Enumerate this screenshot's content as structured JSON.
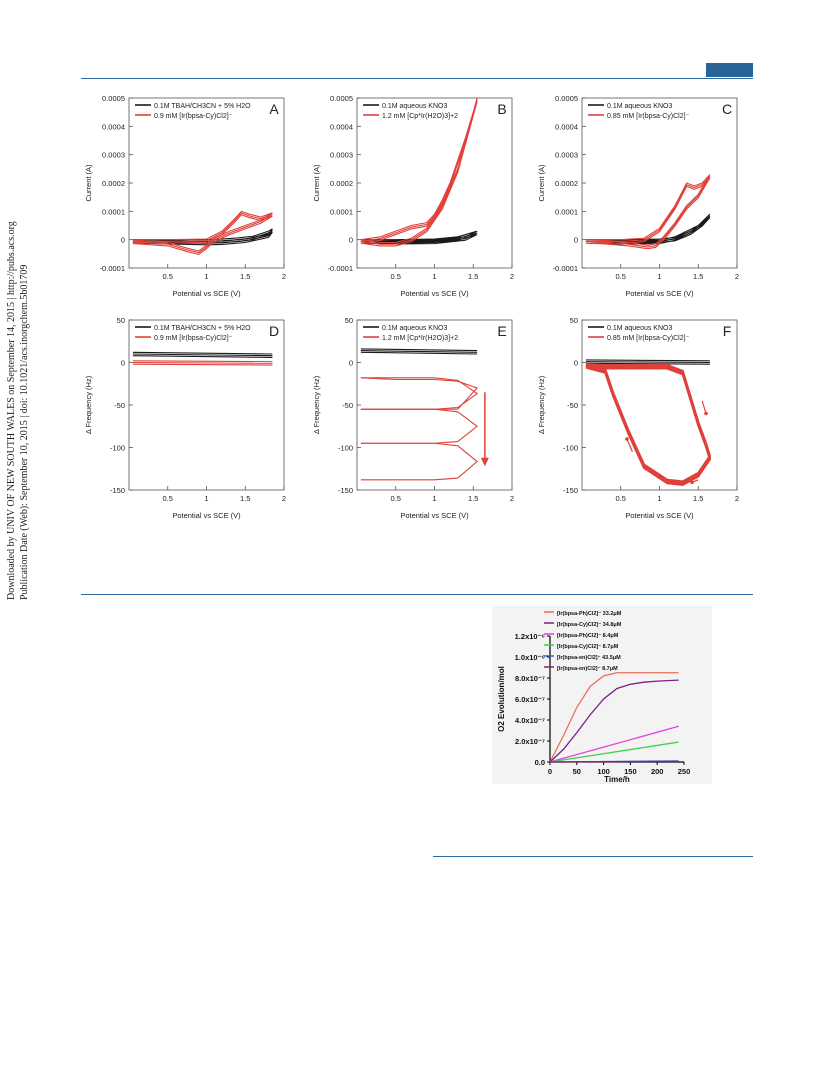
{
  "sidebar": {
    "line1": "Downloaded by UNIV OF NEW SOUTH WALES on September 14, 2015 | http://pubs.acs.org",
    "line2": "Publication Date (Web): September 10, 2015 | doi: 10.1021/acs.inorgchem.5b01709"
  },
  "colors": {
    "rule": "#2e6da4",
    "tab": "#2a6496",
    "red": "#e0403a",
    "black": "#1a1a1a"
  },
  "chart_data": [
    {
      "id": "A",
      "type": "line",
      "panel_letter": "A",
      "xlabel": "Potential vs SCE (V)",
      "ylabel": "Current (A)",
      "xlim": [
        0,
        2
      ],
      "ylim": [
        -0.0001,
        0.0005
      ],
      "xticks": [
        "0.5",
        "1",
        "1.5",
        "2"
      ],
      "yticks": [
        "-0.0001",
        "0",
        "0.0001",
        "0.0002",
        "0.0003",
        "0.0004",
        "0.0005"
      ],
      "legend": [
        "0.1M TBAH/CH3CN + 5% H2O",
        "0.9 mM [Ir(bpsa-Cy)Cl2]⁻"
      ],
      "series": [
        {
          "name": "0.1M TBAH/CH3CN + 5% H2O",
          "color": "#1a1a1a",
          "x": [
            0.05,
            0.5,
            1.0,
            1.2,
            1.4,
            1.6,
            1.8,
            1.85,
            1.8,
            1.5,
            1.2,
            1.0,
            0.5,
            0.05
          ],
          "y": [
            0,
            0,
            0,
            2e-06,
            6e-06,
            1.2e-05,
            3e-05,
            3.8e-05,
            2e-05,
            2e-06,
            -5e-06,
            -6e-06,
            -3e-06,
            0
          ]
        },
        {
          "name": "0.9 mM [Ir(bpsa-Cy)Cl2]⁻",
          "color": "#e0403a",
          "x": [
            0.05,
            0.5,
            1.0,
            1.2,
            1.35,
            1.45,
            1.55,
            1.7,
            1.85,
            1.7,
            1.5,
            1.3,
            1.1,
            1.0,
            0.9,
            0.75,
            0.5,
            0.05
          ],
          "y": [
            0,
            0,
            2e-06,
            3e-05,
            7e-05,
            0.0001,
            9e-05,
            8e-05,
            9.5e-05,
            7e-05,
            5e-05,
            3e-05,
            5e-06,
            -2e-05,
            -4e-05,
            -3e-05,
            -1e-05,
            -2e-06
          ]
        }
      ]
    },
    {
      "id": "B",
      "type": "line",
      "panel_letter": "B",
      "xlabel": "Potential vs SCE (V)",
      "ylabel": "Current (A)",
      "xlim": [
        0,
        2
      ],
      "ylim": [
        -0.0001,
        0.0005
      ],
      "xticks": [
        "0.5",
        "1",
        "1.5",
        "2"
      ],
      "yticks": [
        "-0.0001",
        "0",
        "0.0001",
        "0.0002",
        "0.0003",
        "0.0004",
        "0.0005"
      ],
      "legend": [
        "0.1M aqueous KNO3",
        "1.2 mM [Cp*Ir(H2O)3]+2"
      ],
      "series": [
        {
          "name": "0.1M aqueous KNO3",
          "color": "#1a1a1a",
          "x": [
            0.05,
            0.5,
            1.0,
            1.3,
            1.55,
            1.4,
            1.0,
            0.5,
            0.05
          ],
          "y": [
            0,
            0,
            2e-06,
            1e-05,
            3e-05,
            1e-05,
            -2e-06,
            -3e-06,
            0
          ]
        },
        {
          "name": "1.2 mM [Cp*Ir(H2O)3]+2",
          "color": "#e0403a",
          "x": [
            0.05,
            0.3,
            0.4,
            0.5,
            0.7,
            0.9,
            1.0,
            1.1,
            1.2,
            1.3,
            1.4,
            1.5,
            1.55,
            1.45,
            1.3,
            1.1,
            0.9,
            0.7,
            0.5,
            0.3,
            0.05
          ],
          "y": [
            0,
            1e-05,
            2e-05,
            3e-05,
            5e-05,
            6e-05,
            9e-05,
            0.00014,
            0.0002,
            0.00028,
            0.00036,
            0.00045,
            0.0005,
            0.0004,
            0.00025,
            0.00012,
            4e-05,
            5e-06,
            -1e-05,
            -1e-05,
            0
          ]
        }
      ]
    },
    {
      "id": "C",
      "type": "line",
      "panel_letter": "C",
      "xlabel": "Potential vs SCE (V)",
      "ylabel": "Current (A)",
      "xlim": [
        0,
        2
      ],
      "ylim": [
        -0.0001,
        0.0005
      ],
      "xticks": [
        "0.5",
        "1",
        "1.5",
        "2"
      ],
      "yticks": [
        "-0.0001",
        "0",
        "0.0001",
        "0.0002",
        "0.0003",
        "0.0004",
        "0.0005"
      ],
      "legend": [
        "0.1M aqueous KNO3",
        "0.85 mM [Ir(bpsa-Cy)Cl2]⁻"
      ],
      "series": [
        {
          "name": "0.1M aqueous KNO3",
          "color": "#1a1a1a",
          "x": [
            0.05,
            0.5,
            1.0,
            1.2,
            1.4,
            1.55,
            1.65,
            1.5,
            1.2,
            1.0,
            0.5,
            0.05
          ],
          "y": [
            0,
            0,
            2e-06,
            8e-06,
            3e-05,
            6e-05,
            9e-05,
            5e-05,
            1e-05,
            -2e-06,
            -3e-06,
            0
          ]
        },
        {
          "name": "0.85 mM [Ir(bpsa-Cy)Cl2]⁻",
          "color": "#e0403a",
          "x": [
            0.05,
            0.5,
            0.8,
            1.0,
            1.2,
            1.35,
            1.45,
            1.55,
            1.65,
            1.5,
            1.35,
            1.2,
            1.05,
            0.95,
            0.85,
            0.6,
            0.3,
            0.05
          ],
          "y": [
            0,
            0,
            5e-06,
            4e-05,
            0.00012,
            0.0002,
            0.00019,
            0.0002,
            0.00023,
            0.00016,
            0.00012,
            6e-05,
            1e-05,
            -1.5e-05,
            -2e-05,
            -1e-05,
            -3e-06,
            0
          ]
        }
      ]
    },
    {
      "id": "D",
      "type": "line",
      "panel_letter": "D",
      "xlabel": "Potential vs SCE (V)",
      "ylabel": "Δ Frequency (Hz)",
      "xlim": [
        0,
        2
      ],
      "ylim": [
        -150,
        50
      ],
      "xticks": [
        "0.5",
        "1",
        "1.5",
        "2"
      ],
      "yticks": [
        "-150",
        "-100",
        "-50",
        "0",
        "50"
      ],
      "legend": [
        "0.1M TBAH/CH3CN + 5% H2O",
        "0.9 mM [Ir(bpsa-Cy)Cl2]⁻"
      ],
      "series": [
        {
          "name": "0.1M TBAH/CH3CN + 5% H2O",
          "color": "#1a1a1a",
          "x": [
            0.05,
            1.85
          ],
          "y": [
            12,
            10
          ]
        },
        {
          "name": "0.9 mM [Ir(bpsa-Cy)Cl2]⁻",
          "color": "#e0403a",
          "x": [
            0.05,
            1.85
          ],
          "y": [
            2,
            1
          ]
        }
      ]
    },
    {
      "id": "E",
      "type": "line",
      "panel_letter": "E",
      "xlabel": "Potential vs SCE (V)",
      "ylabel": "Δ Frequency (Hz)",
      "xlim": [
        0,
        2
      ],
      "ylim": [
        -150,
        50
      ],
      "xticks": [
        "0.5",
        "1",
        "1.5",
        "2"
      ],
      "yticks": [
        "-150",
        "-100",
        "-50",
        "0",
        "50"
      ],
      "legend": [
        "0.1M aqueous KNO3",
        "1.2 mM [Cp*Ir(H2O)3]+2"
      ],
      "series": [
        {
          "name": "0.1M aqueous KNO3",
          "color": "#1a1a1a",
          "x": [
            0.05,
            1.55
          ],
          "y": [
            16,
            14
          ]
        },
        {
          "name": "1.2 mM [Cp*Ir(H2O)3]+2",
          "color": "#e0403a",
          "x": [
            0.05,
            0.5,
            1.0,
            1.3,
            1.55,
            1.3,
            1.0,
            0.5,
            0.05
          ],
          "y": [
            -18,
            -20,
            -20,
            -22,
            -30,
            -55,
            -55,
            -55,
            -55
          ]
        }
      ]
    },
    {
      "id": "F",
      "type": "line",
      "panel_letter": "F",
      "xlabel": "Potential vs SCE (V)",
      "ylabel": "Δ Frequency (Hz)",
      "xlim": [
        0,
        2
      ],
      "ylim": [
        -150,
        50
      ],
      "xticks": [
        "0.5",
        "1",
        "1.5",
        "2"
      ],
      "yticks": [
        "-150",
        "-100",
        "-50",
        "0",
        "50"
      ],
      "legend": [
        "0.1M aqueous KNO3",
        "0.85 mM [Ir(bpsa-Cy)Cl2]⁻"
      ],
      "series": [
        {
          "name": "0.1M aqueous KNO3",
          "color": "#1a1a1a",
          "x": [
            0.05,
            1.65
          ],
          "y": [
            3,
            2
          ]
        },
        {
          "name": "0.85 mM [Ir(bpsa-Cy)Cl2]⁻",
          "color": "#e0403a",
          "x": [
            0.05,
            0.3,
            1.1,
            1.3,
            1.4,
            1.5,
            1.6,
            1.65,
            1.5,
            1.3,
            1.1,
            0.8,
            0.6,
            0.4,
            0.3,
            0.05
          ],
          "y": [
            -2,
            -3,
            -3,
            -10,
            -40,
            -70,
            -95,
            -110,
            -130,
            -140,
            -138,
            -120,
            -80,
            -35,
            -8,
            -2
          ]
        }
      ]
    },
    {
      "id": "inset",
      "type": "line",
      "xlabel": "Time/h",
      "ylabel": "O2 Evolution/mol",
      "xlim": [
        0,
        250
      ],
      "ylim": [
        0,
        1.2e-06
      ],
      "xticks": [
        "0",
        "50",
        "100",
        "150",
        "200",
        "250"
      ],
      "yticks": [
        "0.0",
        "2.0x10⁻⁷",
        "4.0x10⁻⁷",
        "6.0x10⁻⁷",
        "8.0x10⁻⁷",
        "1.0x10⁻⁶",
        "1.2x10⁻⁶"
      ],
      "series": [
        {
          "name": "[Ir(bpsa-Ph)Cl2]⁻ 33.2μM",
          "color": "#e8705a",
          "x": [
            0,
            25,
            50,
            75,
            100,
            125,
            150,
            175,
            200,
            240
          ],
          "y": [
            0,
            2.5e-07,
            5.2e-07,
            7.2e-07,
            8.2e-07,
            8.5e-07,
            8.5e-07,
            8.5e-07,
            8.5e-07,
            8.5e-07
          ]
        },
        {
          "name": "[Ir(bpsa-Cy)Cl2]⁻ 34.8μM",
          "color": "#7a1f8a",
          "x": [
            0,
            25,
            50,
            75,
            100,
            125,
            150,
            175,
            200,
            240
          ],
          "y": [
            0,
            1.2e-07,
            2.8e-07,
            4.5e-07,
            6e-07,
            7e-07,
            7.4e-07,
            7.6e-07,
            7.7e-07,
            7.8e-07
          ]
        },
        {
          "name": "[Ir(bpsa-Ph)Cl2]⁻ 8.4μM",
          "color": "#e040e0",
          "x": [
            0,
            240
          ],
          "y": [
            0,
            3.4e-07
          ]
        },
        {
          "name": "[Ir(bpsa-Cy)Cl2]⁻ 8.7μM",
          "color": "#3ed34b",
          "x": [
            0,
            240
          ],
          "y": [
            0,
            1.9e-07
          ]
        },
        {
          "name": "[Ir(bpsa-en)Cl2]⁻ 43.5μM",
          "color": "#3a5fc8",
          "x": [
            0,
            240
          ],
          "y": [
            0,
            1e-08
          ]
        },
        {
          "name": "[Ir(bpsa-en)Cl2]⁻ 8.7μM",
          "color": "#8a2070",
          "x": [
            0,
            240
          ],
          "y": [
            0,
            5e-09
          ]
        }
      ]
    }
  ]
}
